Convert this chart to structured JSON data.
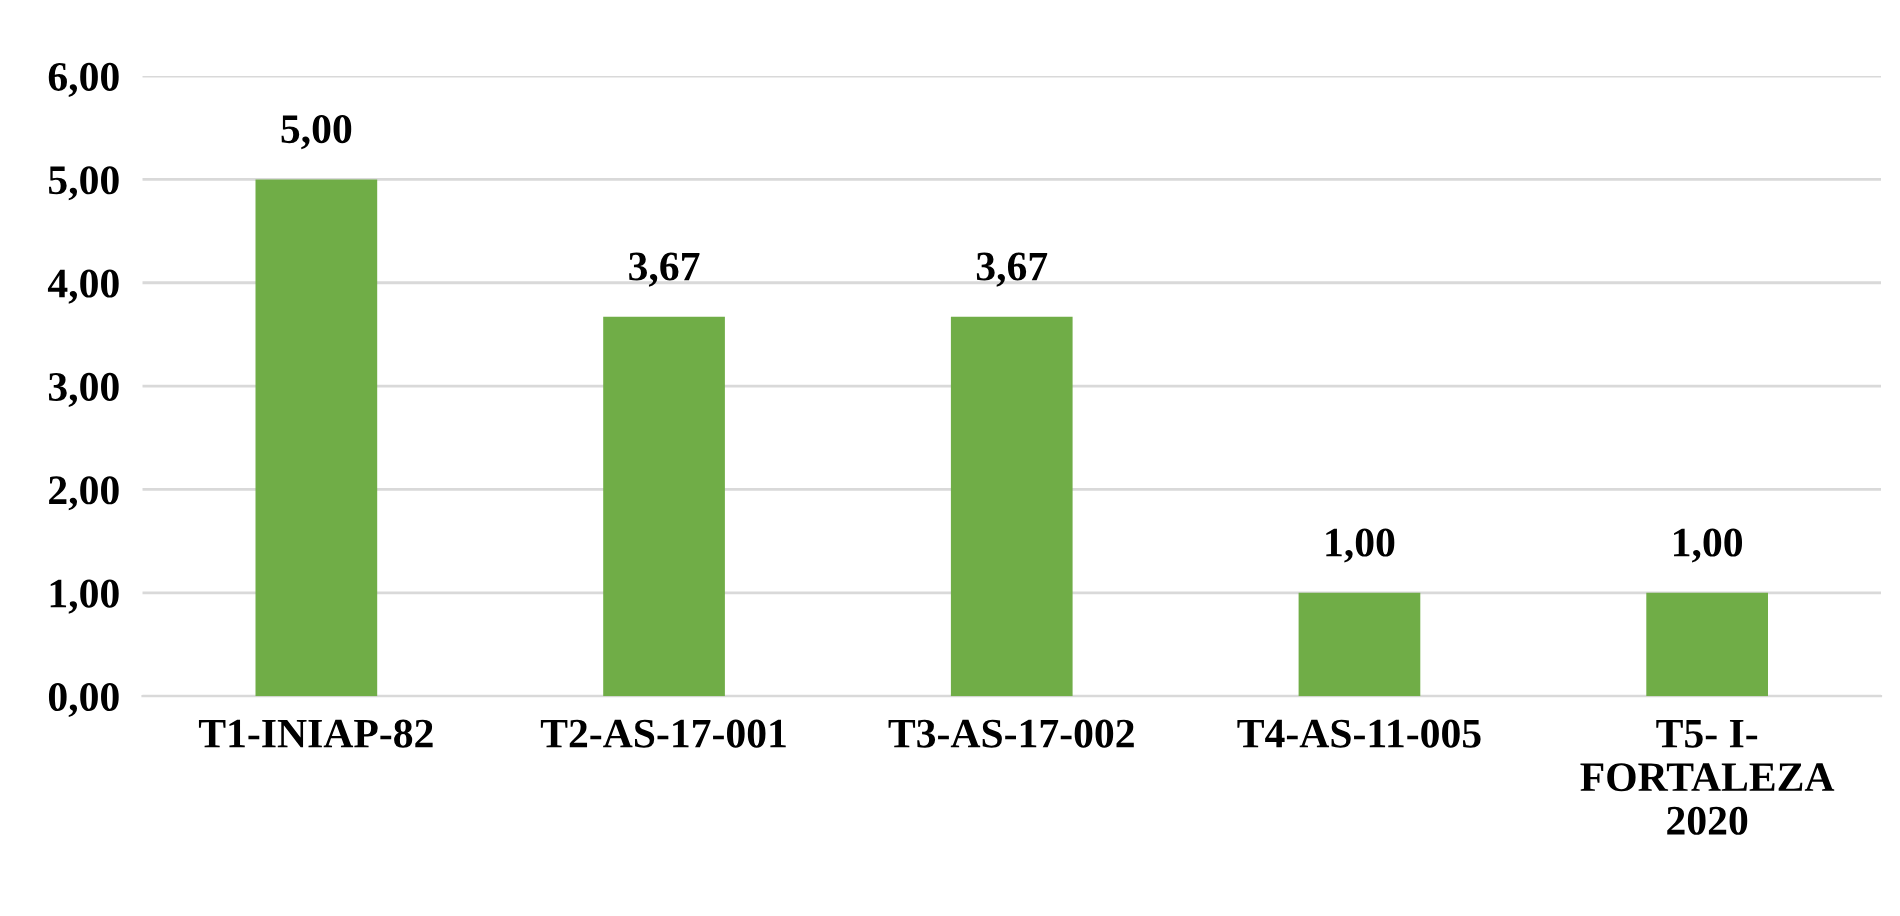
{
  "chart_data": {
    "type": "bar",
    "categories": [
      "T1-INIAP-82",
      "T2-AS-17-001",
      "T3-AS-17-002",
      "T4-AS-11-005",
      "T5- I-\nFORTALEZA\n2020"
    ],
    "values": [
      5.0,
      3.67,
      3.67,
      1.0,
      1.0
    ],
    "value_labels": [
      "5,00",
      "3,67",
      "3,67",
      "1,00",
      "1,00"
    ],
    "color": "#70ad47",
    "ylim": [
      0,
      6
    ],
    "yticks": [
      {
        "value": 0,
        "label": "0,00"
      },
      {
        "value": 1,
        "label": "1,00"
      },
      {
        "value": 2,
        "label": "2,00"
      },
      {
        "value": 3,
        "label": "3,00"
      },
      {
        "value": 4,
        "label": "4,00"
      },
      {
        "value": 5,
        "label": "5,00"
      },
      {
        "value": 6,
        "label": "6,00"
      }
    ],
    "grid": "y"
  }
}
